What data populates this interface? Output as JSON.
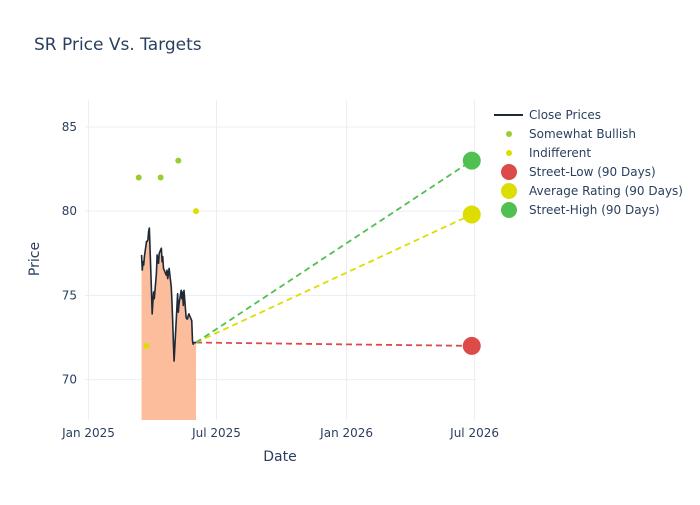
{
  "chart_data": {
    "type": "line",
    "title": "SR Price Vs. Targets",
    "xlabel": "Date",
    "ylabel": "Price",
    "x_ticks": [
      {
        "label": "Jan 2025",
        "date": "2025-01-01"
      },
      {
        "label": "Jul 2025",
        "date": "2025-07-01"
      },
      {
        "label": "Jan 2026",
        "date": "2026-01-01"
      },
      {
        "label": "Jul 2026",
        "date": "2026-07-01"
      }
    ],
    "y_ticks": [
      70,
      75,
      80,
      85
    ],
    "xlim": [
      "2024-12-27",
      "2026-07-03"
    ],
    "ylim": [
      67.6,
      86.6
    ],
    "grid": true,
    "legend_position": "top-right",
    "colors": {
      "close": "#1f2937",
      "fill": "#fbbd9c",
      "bullish": "#9acd32",
      "indifferent": "#dddd00",
      "low": "#dc4a4a",
      "avg": "#dddd00",
      "high": "#50c050",
      "grid": "#ebedf2",
      "text": "#2a3f5f"
    },
    "series": [
      {
        "name": "Close Prices",
        "kind": "line",
        "points": [
          [
            "2025-03-17",
            77.4
          ],
          [
            "2025-03-18",
            76.5
          ],
          [
            "2025-03-19",
            77.0
          ],
          [
            "2025-03-20",
            76.8
          ],
          [
            "2025-03-21",
            77.3
          ],
          [
            "2025-03-24",
            78.2
          ],
          [
            "2025-03-25",
            78.2
          ],
          [
            "2025-03-26",
            78.3
          ],
          [
            "2025-03-27",
            78.8
          ],
          [
            "2025-03-28",
            79.0
          ],
          [
            "2025-03-31",
            75.3
          ],
          [
            "2025-04-01",
            73.9
          ],
          [
            "2025-04-02",
            74.6
          ],
          [
            "2025-04-03",
            75.2
          ],
          [
            "2025-04-04",
            74.8
          ],
          [
            "2025-04-07",
            76.3
          ],
          [
            "2025-04-08",
            77.4
          ],
          [
            "2025-04-09",
            77.2
          ],
          [
            "2025-04-10",
            76.9
          ],
          [
            "2025-04-11",
            77.5
          ],
          [
            "2025-04-14",
            77.8
          ],
          [
            "2025-04-15",
            77.0
          ],
          [
            "2025-04-16",
            77.3
          ],
          [
            "2025-04-17",
            76.6
          ],
          [
            "2025-04-21",
            76.2
          ],
          [
            "2025-04-22",
            76.5
          ],
          [
            "2025-04-23",
            76.0
          ],
          [
            "2025-04-24",
            76.3
          ],
          [
            "2025-04-25",
            76.6
          ],
          [
            "2025-04-28",
            75.5
          ],
          [
            "2025-04-29",
            74.6
          ],
          [
            "2025-04-30",
            73.5
          ],
          [
            "2025-05-01",
            72.2
          ],
          [
            "2025-05-02",
            71.1
          ],
          [
            "2025-05-05",
            73.5
          ],
          [
            "2025-05-06",
            74.3
          ],
          [
            "2025-05-07",
            75.1
          ],
          [
            "2025-05-08",
            74.0
          ],
          [
            "2025-05-09",
            74.5
          ],
          [
            "2025-05-12",
            75.3
          ],
          [
            "2025-05-13",
            74.8
          ],
          [
            "2025-05-14",
            75.2
          ],
          [
            "2025-05-15",
            74.4
          ],
          [
            "2025-05-16",
            75.3
          ],
          [
            "2025-05-19",
            73.7
          ],
          [
            "2025-05-20",
            73.6
          ],
          [
            "2025-05-21",
            73.6
          ],
          [
            "2025-05-22",
            73.8
          ],
          [
            "2025-05-23",
            73.9
          ],
          [
            "2025-05-27",
            73.5
          ],
          [
            "2025-05-28",
            72.3
          ],
          [
            "2025-05-29",
            72.1
          ],
          [
            "2025-05-30",
            72.2
          ],
          [
            "2025-06-02",
            72.2
          ]
        ]
      },
      {
        "name": "Somewhat Bullish",
        "kind": "marker",
        "points": [
          [
            "2025-03-13",
            82
          ],
          [
            "2025-04-13",
            82
          ],
          [
            "2025-05-08",
            83
          ]
        ]
      },
      {
        "name": "Indifferent",
        "kind": "marker",
        "points": [
          [
            "2025-03-24",
            72
          ],
          [
            "2025-06-02",
            80
          ]
        ]
      },
      {
        "name": "Street-Low (90 Days)",
        "kind": "target",
        "from": [
          "2025-06-02",
          72.2
        ],
        "to": [
          "2026-06-27",
          72
        ]
      },
      {
        "name": "Average Rating (90 Days)",
        "kind": "target",
        "from": [
          "2025-06-02",
          72.2
        ],
        "to": [
          "2026-06-27",
          79.8
        ]
      },
      {
        "name": "Street-High (90 Days)",
        "kind": "target",
        "from": [
          "2025-06-02",
          72.2
        ],
        "to": [
          "2026-06-27",
          83
        ]
      }
    ]
  }
}
